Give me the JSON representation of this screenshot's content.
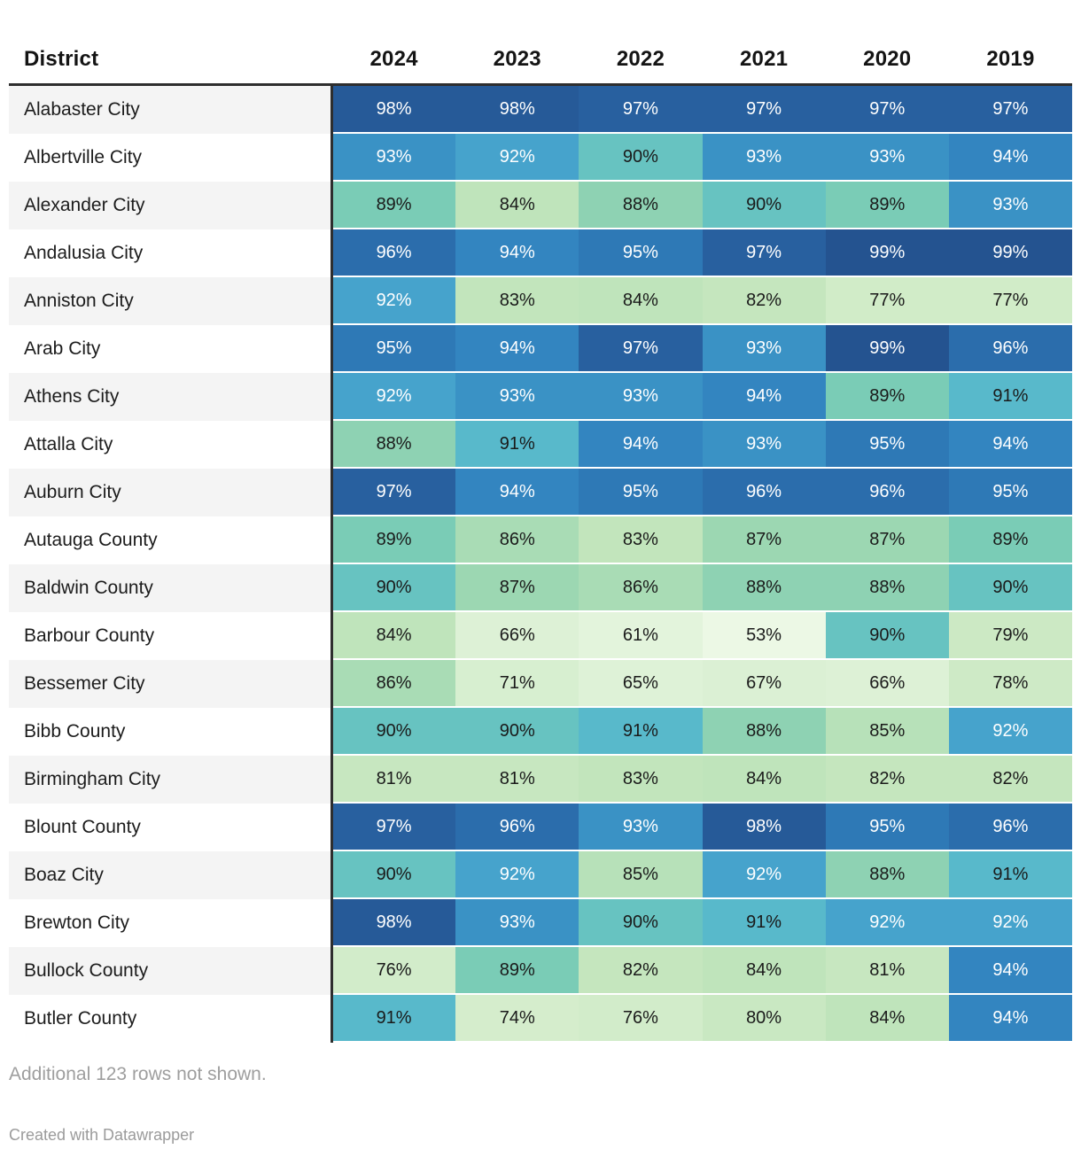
{
  "header": {
    "district_label": "District",
    "years": [
      "2024",
      "2023",
      "2022",
      "2021",
      "2020",
      "2019"
    ]
  },
  "chart_data": {
    "type": "heatmap",
    "unit": "%",
    "columns": [
      "2024",
      "2023",
      "2022",
      "2021",
      "2020",
      "2019"
    ],
    "rows": [
      {
        "district": "Alabaster City",
        "values": [
          98,
          98,
          97,
          97,
          97,
          97
        ]
      },
      {
        "district": "Albertville City",
        "values": [
          93,
          92,
          90,
          93,
          93,
          94
        ]
      },
      {
        "district": "Alexander City",
        "values": [
          89,
          84,
          88,
          90,
          89,
          93
        ]
      },
      {
        "district": "Andalusia City",
        "values": [
          96,
          94,
          95,
          97,
          99,
          99
        ]
      },
      {
        "district": "Anniston City",
        "values": [
          92,
          83,
          84,
          82,
          77,
          77
        ]
      },
      {
        "district": "Arab City",
        "values": [
          95,
          94,
          97,
          93,
          99,
          96
        ]
      },
      {
        "district": "Athens City",
        "values": [
          92,
          93,
          93,
          94,
          89,
          91
        ]
      },
      {
        "district": "Attalla City",
        "values": [
          88,
          91,
          94,
          93,
          95,
          94
        ]
      },
      {
        "district": "Auburn City",
        "values": [
          97,
          94,
          95,
          96,
          96,
          95
        ]
      },
      {
        "district": "Autauga County",
        "values": [
          89,
          86,
          83,
          87,
          87,
          89
        ]
      },
      {
        "district": "Baldwin County",
        "values": [
          90,
          87,
          86,
          88,
          88,
          90
        ]
      },
      {
        "district": "Barbour County",
        "values": [
          84,
          66,
          61,
          53,
          90,
          79
        ]
      },
      {
        "district": "Bessemer City",
        "values": [
          86,
          71,
          65,
          67,
          66,
          78
        ]
      },
      {
        "district": "Bibb County",
        "values": [
          90,
          90,
          91,
          88,
          85,
          92
        ]
      },
      {
        "district": "Birmingham City",
        "values": [
          81,
          81,
          83,
          84,
          82,
          82
        ]
      },
      {
        "district": "Blount County",
        "values": [
          97,
          96,
          93,
          98,
          95,
          96
        ]
      },
      {
        "district": "Boaz City",
        "values": [
          90,
          92,
          85,
          92,
          88,
          91
        ]
      },
      {
        "district": "Brewton City",
        "values": [
          98,
          93,
          90,
          91,
          92,
          92
        ]
      },
      {
        "district": "Bullock County",
        "values": [
          76,
          89,
          82,
          84,
          81,
          94
        ]
      },
      {
        "district": "Butler County",
        "values": [
          91,
          74,
          76,
          80,
          84,
          94
        ]
      }
    ],
    "color_scale": {
      "53": "#ecf8e5",
      "61": "#e3f4dc",
      "65": "#def2d7",
      "66": "#ddf1d6",
      "67": "#dbf0d4",
      "71": "#d7efd0",
      "74": "#d5edcc",
      "76": "#d2ecca",
      "77": "#d1ecc8",
      "78": "#ceeac6",
      "79": "#cce9c4",
      "80": "#c9e8c2",
      "81": "#c7e7c0",
      "82": "#c5e6be",
      "83": "#c2e5bc",
      "84": "#bfe4bb",
      "85": "#b7e1b9",
      "86": "#a9dcb5",
      "87": "#9cd7b2",
      "88": "#8ed2b3",
      "89": "#7accb6",
      "90": "#67c3c1",
      "91": "#58b9cb",
      "92": "#46a3cc",
      "93": "#3a92c5",
      "94": "#3385c0",
      "95": "#2e79b6",
      "96": "#2b6dac",
      "97": "#28609f",
      "98": "#265a98",
      "99": "#245390"
    },
    "text_colors": {
      "dark": "#1a1a1a",
      "light": "#ffffff",
      "white_text_min_value": 92
    }
  },
  "footer": {
    "note": "Additional 123 rows not shown.",
    "credit": "Created with Datawrapper"
  }
}
